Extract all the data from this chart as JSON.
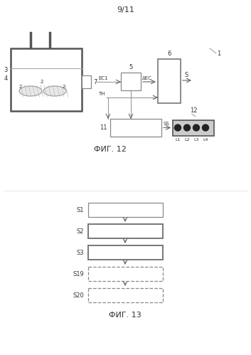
{
  "title": "9/11",
  "fig12_label": "ФИГ. 12",
  "fig13_label": "ФИГ. 13",
  "bg_color": "#ffffff",
  "line_color": "#999999",
  "dark_line": "#555555",
  "arrow_color": "#666666",
  "label_color": "#333333",
  "font_size": 7,
  "small_font": 6
}
